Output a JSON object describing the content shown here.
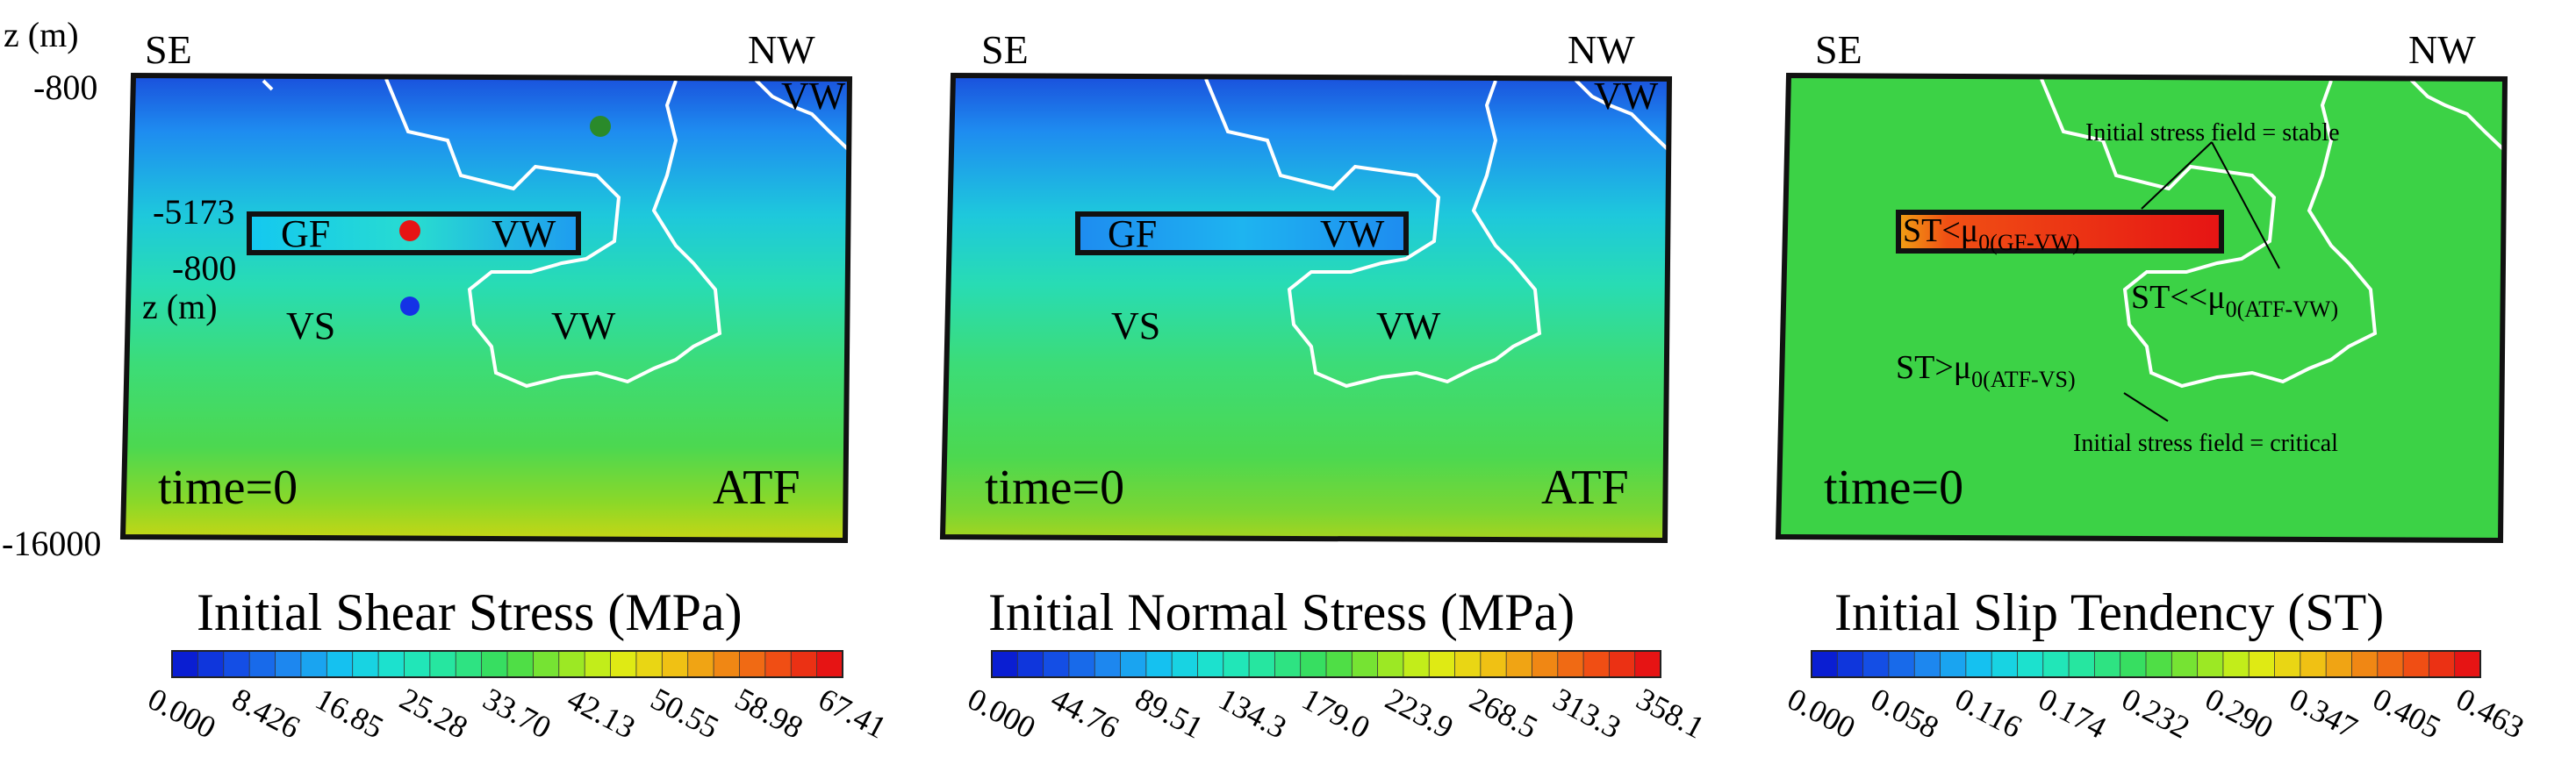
{
  "axis": {
    "z_label_top": "z (m)",
    "z_top_value": "-800",
    "z_bottom_value": "-16000",
    "inset_top_value": "-5173",
    "inset_bottom_value": "-800",
    "inset_z_label": "z (m)"
  },
  "panels": [
    {
      "dir_left": "SE",
      "dir_right": "NW",
      "time": "time=0",
      "fault": "ATF",
      "regions": {
        "gf": "GF",
        "vw_inset": "VW",
        "vs": "VS",
        "vw_mid": "VW",
        "vw_top": "VW"
      },
      "colorbar": {
        "title": "Initial Shear Stress (MPa)",
        "ticks": [
          "0.000",
          "8.426",
          "16.85",
          "25.28",
          "33.70",
          "42.13",
          "50.55",
          "58.98",
          "67.41"
        ]
      }
    },
    {
      "dir_left": "SE",
      "dir_right": "NW",
      "time": "time=0",
      "fault": "ATF",
      "regions": {
        "gf": "GF",
        "vw_inset": "VW",
        "vs": "VS",
        "vw_mid": "VW",
        "vw_top": "VW"
      },
      "colorbar": {
        "title": "Initial Normal Stress (MPa)",
        "ticks": [
          "0.000",
          "44.76",
          "89.51",
          "134.3",
          "179.0",
          "223.9",
          "268.5",
          "313.3",
          "358.1"
        ]
      }
    },
    {
      "dir_left": "SE",
      "dir_right": "NW",
      "time": "time=0",
      "annotations": {
        "stable": "Initial stress field = stable",
        "critical": "Initial stress field = critical",
        "st_gf_main": "ST<μ",
        "st_gf_sub": "0(GF-VW)",
        "st_atf_vw_main": "ST<<μ",
        "st_atf_vw_sub": "0(ATF-VW)",
        "st_atf_vs_main": "ST>μ",
        "st_atf_vs_sub": "0(ATF-VS)"
      },
      "colorbar": {
        "title": "Initial Slip Tendency (ST)",
        "ticks": [
          "0.000",
          "0.058",
          "0.116",
          "0.174",
          "0.232",
          "0.290",
          "0.347",
          "0.405",
          "0.463"
        ]
      }
    }
  ],
  "colors": {
    "colorbar_stops": [
      "#0a1ed2",
      "#1450e6",
      "#1e8cf0",
      "#14c8f0",
      "#1ee6c8",
      "#28e696",
      "#3cdc50",
      "#8ce628",
      "#dcf014",
      "#f0c814",
      "#f08c14",
      "#f05014",
      "#e61414"
    ]
  }
}
